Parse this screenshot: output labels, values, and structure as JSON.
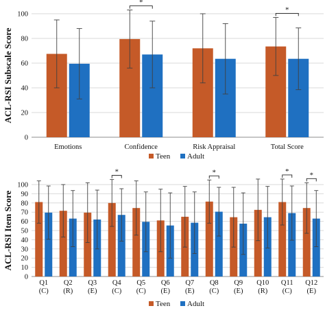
{
  "colors": {
    "teen": "#c55a28",
    "adult": "#1f70c1",
    "grid": "#d9d9d9",
    "axis": "#8c8c8c",
    "error": "#404040"
  },
  "chart_data": [
    {
      "type": "bar",
      "ylabel": "ACL-RSI Subscale Score",
      "ylim": [
        0,
        100
      ],
      "yticks": [
        0,
        20,
        40,
        60,
        80,
        100
      ],
      "grid": true,
      "legend": "bottom",
      "categories": [
        "Emotions",
        "Confidence",
        "Risk Appraisal",
        "Total Score"
      ],
      "series": [
        {
          "name": "Teen",
          "values": [
            67.5,
            79.5,
            72,
            73.5
          ],
          "error": [
            27.5,
            23.5,
            28,
            23.5
          ]
        },
        {
          "name": "Adult",
          "values": [
            59.5,
            67,
            63.5,
            63.5
          ],
          "error": [
            28.5,
            27,
            28.5,
            25
          ]
        }
      ],
      "significance": [
        {
          "category_index": 1,
          "label": "*"
        },
        {
          "category_index": 3,
          "label": "*"
        }
      ]
    },
    {
      "type": "bar",
      "ylabel": "ACL-RSI Item Score",
      "ylim": [
        0,
        100
      ],
      "yticks": [
        0,
        10,
        20,
        30,
        40,
        50,
        60,
        70,
        80,
        90,
        100
      ],
      "grid": true,
      "legend": "bottom",
      "categories": [
        "Q1",
        "Q2",
        "Q3",
        "Q4",
        "Q5",
        "Q6",
        "Q7",
        "Q8",
        "Q9",
        "Q10",
        "Q11",
        "Q12"
      ],
      "subcategories": [
        "(C)",
        "(R)",
        "(E)",
        "(C)",
        "(C)",
        "(E)",
        "(E)",
        "(C)",
        "(E)",
        "(R)",
        "(C)",
        "(E)"
      ],
      "series": [
        {
          "name": "Teen",
          "values": [
            81,
            71.5,
            69.5,
            80,
            74.5,
            61,
            65,
            81.5,
            64.5,
            72.5,
            81,
            74.5
          ],
          "error": [
            23,
            28.5,
            32.5,
            25.5,
            29.5,
            34,
            33,
            23.5,
            32.5,
            33.5,
            25,
            27.5
          ]
        },
        {
          "name": "Adult",
          "values": [
            69.5,
            63,
            62,
            67,
            59.5,
            55.5,
            58.5,
            70.5,
            57.5,
            64.5,
            69,
            63
          ],
          "error": [
            29,
            30.5,
            32,
            28.5,
            32.5,
            35.5,
            33.5,
            26.5,
            33.5,
            33.5,
            29.5,
            30.5
          ]
        }
      ],
      "significance": [
        {
          "category_index": 3,
          "label": "*"
        },
        {
          "category_index": 7,
          "label": "*"
        },
        {
          "category_index": 10,
          "label": "*"
        },
        {
          "category_index": 11,
          "label": "*"
        }
      ]
    }
  ]
}
